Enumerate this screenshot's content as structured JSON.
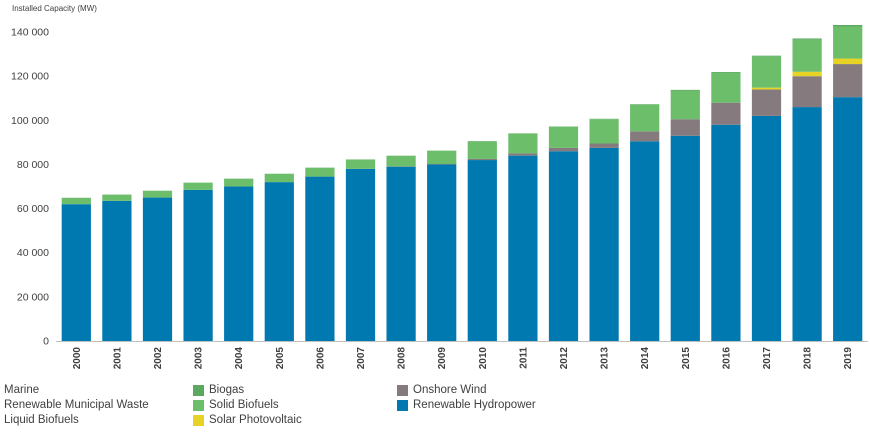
{
  "chart_data": {
    "type": "bar",
    "stacked": true,
    "ylabel": "Installed Capacity (MW)",
    "ylim": [
      0,
      150000
    ],
    "yticks": [
      0,
      20000,
      40000,
      60000,
      80000,
      100000,
      120000,
      140000
    ],
    "ytick_labels": [
      "0",
      "20 000",
      "40 000",
      "60 000",
      "80 000",
      "100 000",
      "120 000",
      "140 000"
    ],
    "grid": false,
    "legend_position": "bottom",
    "categories": [
      "2000",
      "2001",
      "2002",
      "2003",
      "2004",
      "2005",
      "2006",
      "2007",
      "2008",
      "2009",
      "2010",
      "2011",
      "2012",
      "2013",
      "2014",
      "2015",
      "2016",
      "2017",
      "2018",
      "2019"
    ],
    "series": [
      {
        "name": "Renewable Hydropower",
        "color": "#0079B0",
        "values": [
          62000,
          63500,
          65000,
          68500,
          70000,
          72000,
          74500,
          78000,
          79000,
          80000,
          82000,
          84000,
          86000,
          87500,
          90500,
          93000,
          98000,
          102000,
          106000,
          110500
        ]
      },
      {
        "name": "Onshore Wind",
        "color": "#857B7E",
        "values": [
          0,
          0,
          0,
          0,
          0,
          0,
          0,
          0,
          100,
          200,
          500,
          1000,
          1500,
          2000,
          4500,
          7500,
          10000,
          12000,
          14000,
          15000
        ]
      },
      {
        "name": "Solar Photovoltaic",
        "color": "#E6D325",
        "values": [
          0,
          0,
          0,
          0,
          0,
          0,
          0,
          0,
          0,
          0,
          0,
          0,
          0,
          0,
          0,
          0,
          0,
          800,
          2000,
          2500
        ]
      },
      {
        "name": "Solid Biofuels",
        "color": "#6DBE6B",
        "values": [
          2800,
          2800,
          3000,
          3200,
          3500,
          3700,
          4000,
          4200,
          4800,
          6000,
          8000,
          9000,
          9500,
          11000,
          12000,
          13000,
          13500,
          14000,
          14500,
          14500
        ]
      },
      {
        "name": "Biogas",
        "color": "#5AA95F",
        "values": [
          100,
          100,
          100,
          100,
          100,
          100,
          100,
          100,
          100,
          100,
          100,
          100,
          200,
          200,
          300,
          300,
          400,
          500,
          600,
          700
        ]
      },
      {
        "name": "Marine",
        "color": "#ffffff",
        "values": [
          0,
          0,
          0,
          0,
          0,
          0,
          0,
          0,
          0,
          0,
          0,
          0,
          0,
          0,
          0,
          0,
          0,
          0,
          0,
          0
        ]
      },
      {
        "name": "Renewable Municipal Waste",
        "color": "#ffffff",
        "values": [
          0,
          0,
          0,
          0,
          0,
          0,
          0,
          0,
          0,
          0,
          0,
          0,
          0,
          0,
          0,
          0,
          0,
          0,
          0,
          0
        ]
      },
      {
        "name": "Liquid Biofuels",
        "color": "#ffffff",
        "values": [
          0,
          0,
          0,
          0,
          0,
          0,
          0,
          0,
          0,
          0,
          0,
          0,
          0,
          0,
          0,
          0,
          0,
          0,
          0,
          0
        ]
      }
    ]
  },
  "legend": {
    "col1": [
      "Marine",
      "Renewable Municipal Waste",
      "Liquid Biofuels"
    ],
    "col2": [
      {
        "label": "Biogas",
        "color": "#5AA95F"
      },
      {
        "label": "Solid Biofuels",
        "color": "#6DBE6B"
      },
      {
        "label": "Solar Photovoltaic",
        "color": "#E6D325"
      }
    ],
    "col3": [
      {
        "label": "Onshore Wind",
        "color": "#857B7E"
      },
      {
        "label": "Renewable Hydropower",
        "color": "#0079B0"
      }
    ]
  }
}
